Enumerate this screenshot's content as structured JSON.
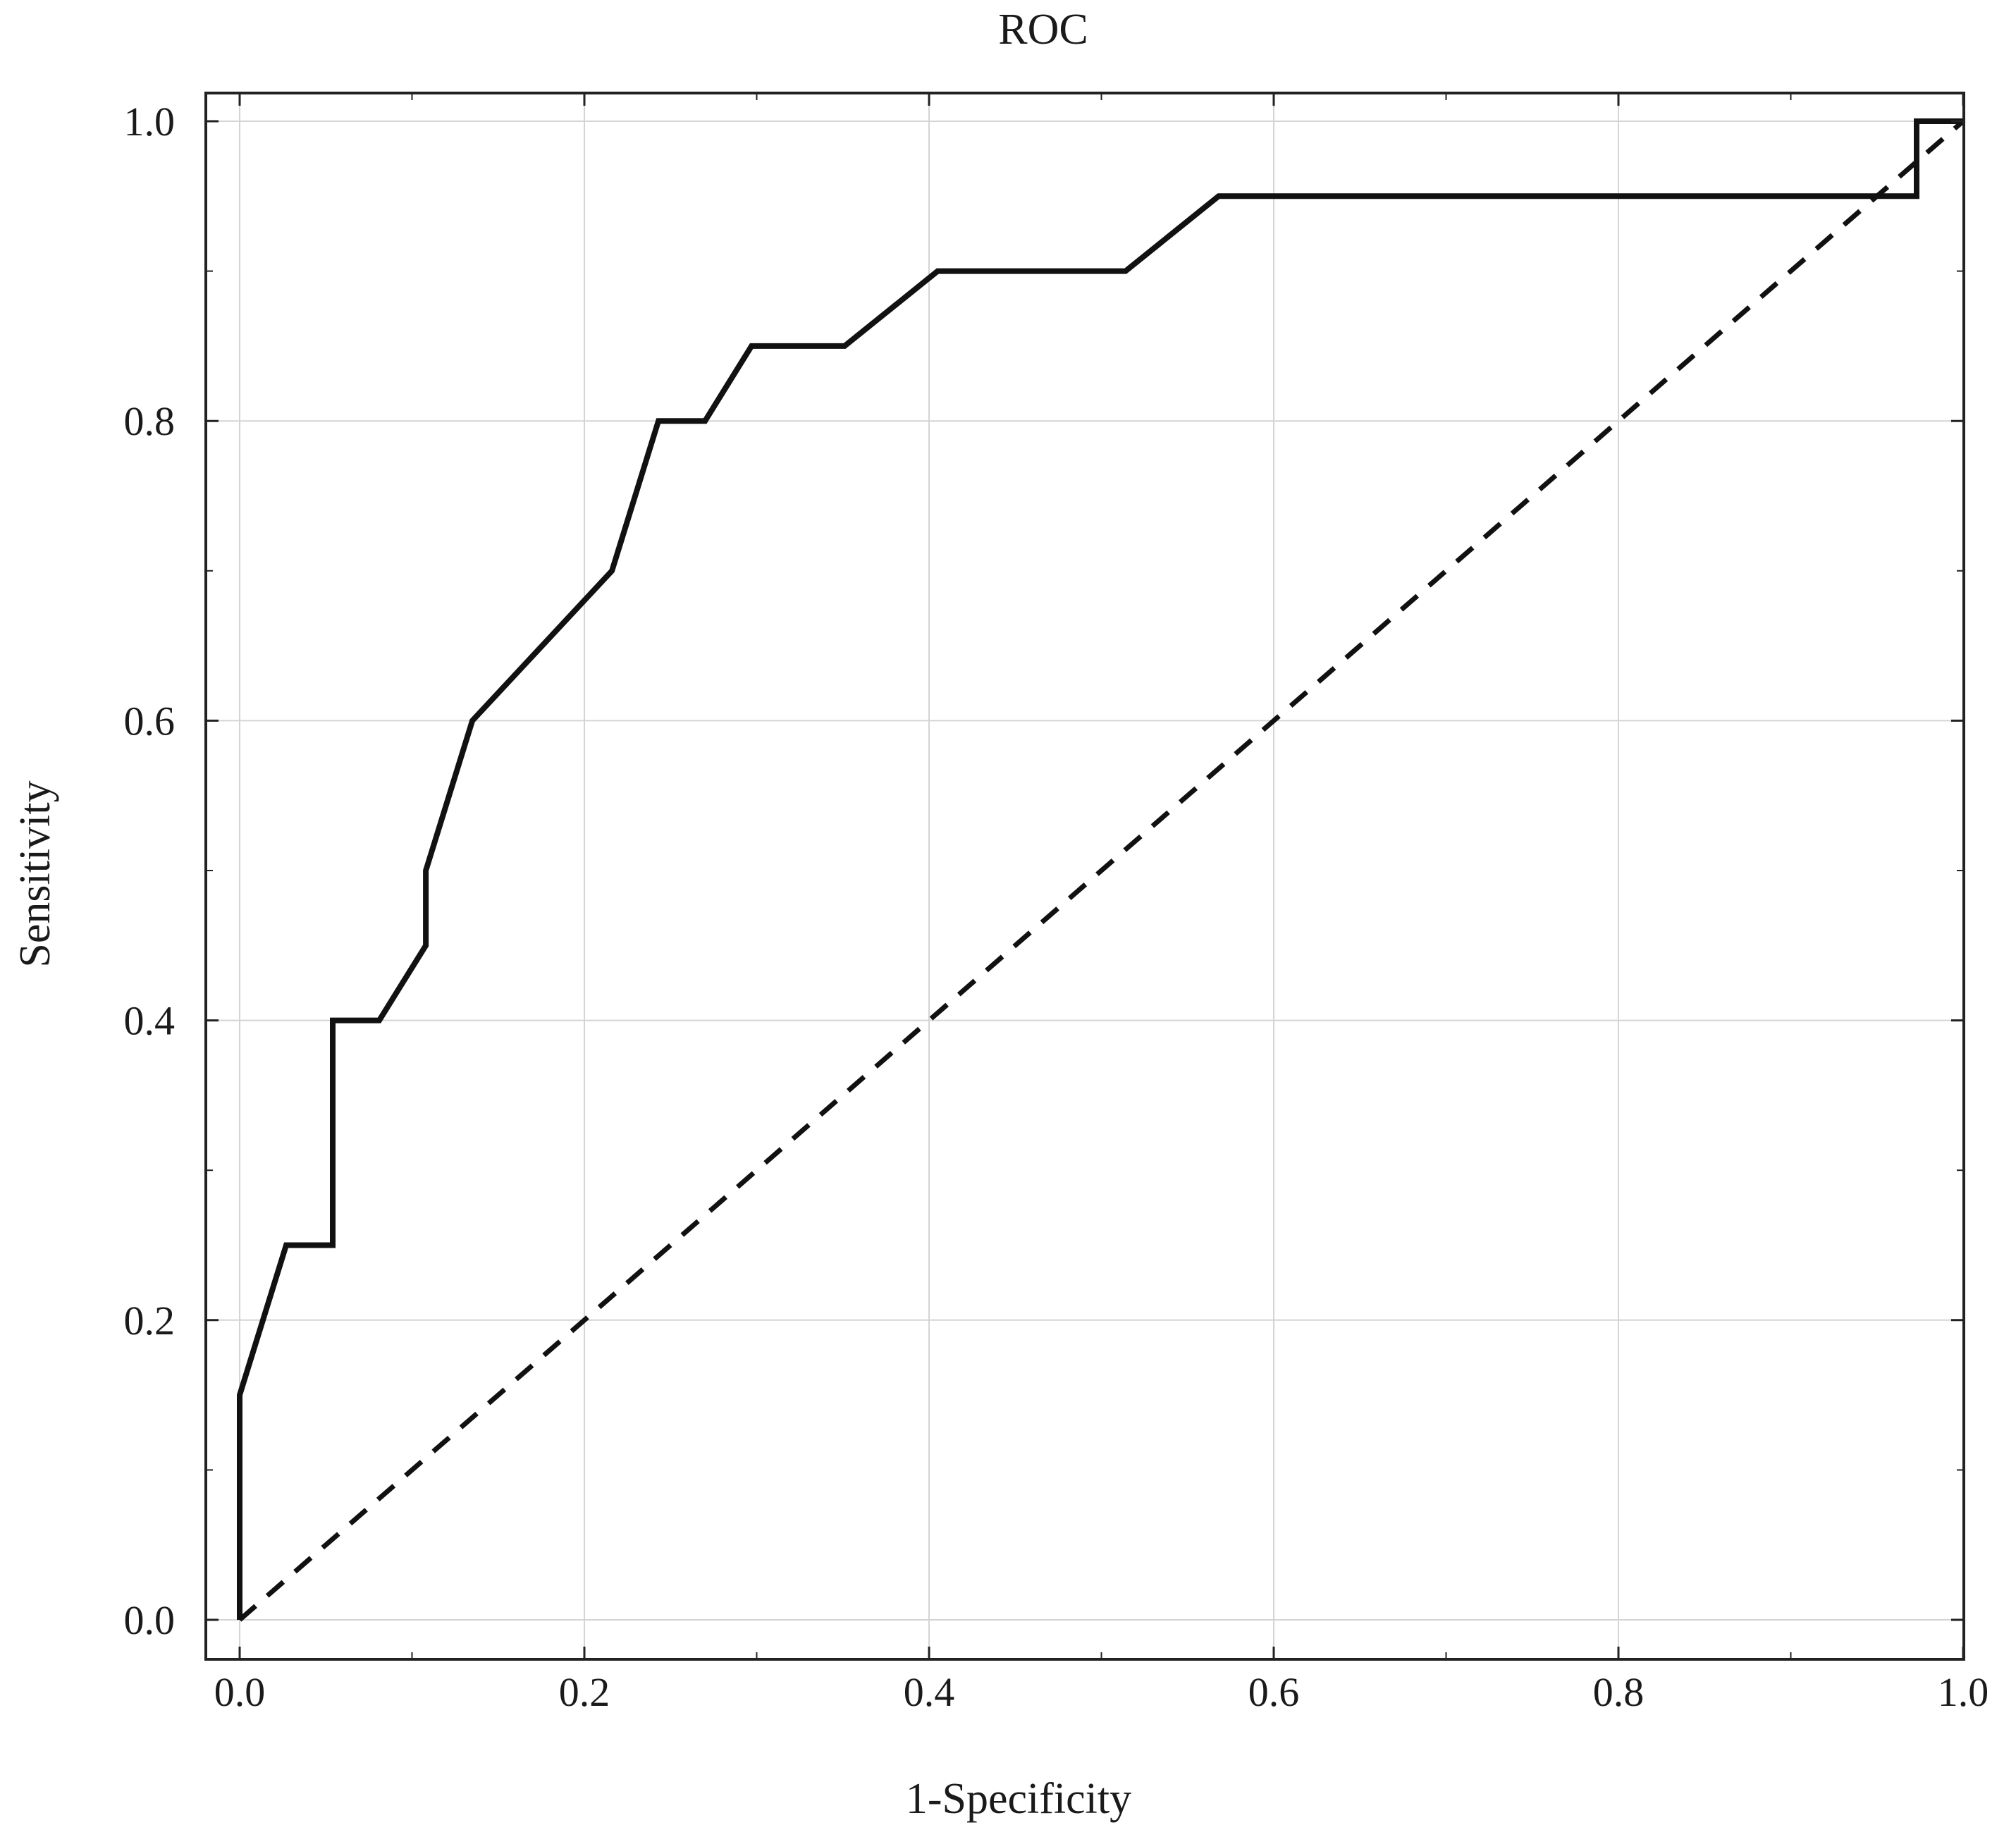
{
  "chart_data": {
    "type": "line",
    "title": "ROC",
    "xlabel": "1-Specificity",
    "ylabel": "Sensitivity",
    "xlim": [
      0.0,
      1.0
    ],
    "ylim": [
      0.0,
      1.0
    ],
    "xticks": [
      "0.0",
      "0.2",
      "0.4",
      "0.6",
      "0.8",
      "1.0"
    ],
    "yticks": [
      "0.0",
      "0.2",
      "0.4",
      "0.6",
      "0.8",
      "1.0"
    ],
    "grid": true,
    "series": [
      {
        "style": "solid",
        "color": "#111111",
        "x": [
          0.0,
          0.0,
          0.027,
          0.054,
          0.054,
          0.081,
          0.108,
          0.108,
          0.135,
          0.216,
          0.243,
          0.27,
          0.297,
          0.351,
          0.405,
          0.514,
          0.568,
          0.973,
          0.973,
          1.0
        ],
        "y": [
          0.0,
          0.15,
          0.25,
          0.25,
          0.4,
          0.4,
          0.45,
          0.5,
          0.6,
          0.7,
          0.8,
          0.8,
          0.85,
          0.85,
          0.9,
          0.9,
          0.95,
          0.95,
          1.0,
          1.0
        ]
      },
      {
        "style": "dashed",
        "color": "#111111",
        "x": [
          0.0,
          1.0
        ],
        "y": [
          0.0,
          1.0
        ]
      }
    ]
  }
}
